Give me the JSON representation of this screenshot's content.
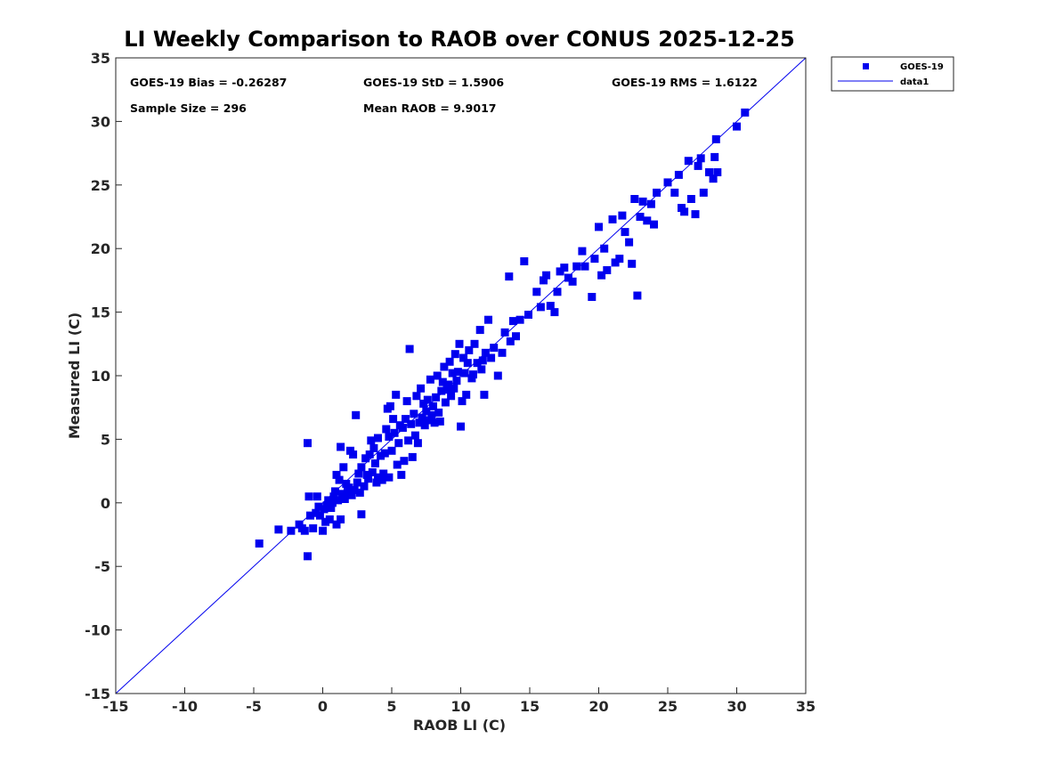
{
  "chart_data": {
    "type": "scatter",
    "title": "LI Weekly Comparison to RAOB over CONUS 2025-12-25",
    "xlabel": "RAOB LI (C)",
    "ylabel": "Measured LI (C)",
    "xlim": [
      -15,
      35
    ],
    "ylim": [
      -15,
      35
    ],
    "xticks": [
      "-15",
      "-10",
      "-5",
      "0",
      "5",
      "10",
      "15",
      "20",
      "25",
      "30",
      "35"
    ],
    "yticks": [
      "-15",
      "-10",
      "-5",
      "0",
      "5",
      "10",
      "15",
      "20",
      "25",
      "30",
      "35"
    ],
    "grid": false,
    "legend_position": "outside top-right",
    "colors": {
      "points": "#0000ee",
      "line": "#0000ee"
    },
    "stats": {
      "bias": "GOES-19 Bias = -0.26287",
      "std": "GOES-19 StD = 1.5906",
      "rms": "GOES-19 RMS = 1.6122",
      "sample": "Sample Size = 296",
      "mean": "Mean RAOB = 9.9017"
    },
    "series": [
      {
        "name": "GOES-19",
        "kind": "scatter",
        "points": [
          [
            -4.6,
            -3.2
          ],
          [
            -3.2,
            -2.1
          ],
          [
            -2.3,
            -2.2
          ],
          [
            -1.7,
            -1.7
          ],
          [
            -1.5,
            -2.0
          ],
          [
            -1.3,
            -2.2
          ],
          [
            -1.1,
            -4.2
          ],
          [
            -1.1,
            4.7
          ],
          [
            -1.0,
            0.5
          ],
          [
            -0.9,
            -1.0
          ],
          [
            -0.7,
            -2.0
          ],
          [
            -0.5,
            -0.8
          ],
          [
            -0.4,
            0.5
          ],
          [
            -0.3,
            -0.3
          ],
          [
            -0.2,
            -1.0
          ],
          [
            0.0,
            -2.2
          ],
          [
            0.1,
            -0.5
          ],
          [
            0.2,
            -1.5
          ],
          [
            0.3,
            -0.2
          ],
          [
            0.4,
            0.2
          ],
          [
            0.5,
            -1.3
          ],
          [
            0.6,
            -0.4
          ],
          [
            0.7,
            0.0
          ],
          [
            0.8,
            0.5
          ],
          [
            0.9,
            0.9
          ],
          [
            1.0,
            -1.7
          ],
          [
            1.0,
            2.2
          ],
          [
            1.1,
            0.2
          ],
          [
            1.2,
            1.8
          ],
          [
            1.3,
            -1.3
          ],
          [
            1.3,
            4.4
          ],
          [
            1.4,
            0.7
          ],
          [
            1.5,
            2.8
          ],
          [
            1.6,
            0.3
          ],
          [
            1.7,
            1.5
          ],
          [
            1.8,
            0.9
          ],
          [
            1.9,
            1.2
          ],
          [
            2.0,
            4.1
          ],
          [
            2.1,
            0.6
          ],
          [
            2.2,
            3.8
          ],
          [
            2.3,
            1.0
          ],
          [
            2.4,
            6.9
          ],
          [
            2.5,
            1.6
          ],
          [
            2.6,
            2.3
          ],
          [
            2.7,
            0.8
          ],
          [
            2.8,
            -0.9
          ],
          [
            2.8,
            2.8
          ],
          [
            3.0,
            1.3
          ],
          [
            3.1,
            3.5
          ],
          [
            3.2,
            2.2
          ],
          [
            3.3,
            1.9
          ],
          [
            3.4,
            3.8
          ],
          [
            3.5,
            4.9
          ],
          [
            3.6,
            2.4
          ],
          [
            3.7,
            4.3
          ],
          [
            3.8,
            3.1
          ],
          [
            3.9,
            1.6
          ],
          [
            4.0,
            2.0
          ],
          [
            4.0,
            5.1
          ],
          [
            4.2,
            3.7
          ],
          [
            4.3,
            1.8
          ],
          [
            4.4,
            2.3
          ],
          [
            4.5,
            3.9
          ],
          [
            4.6,
            5.8
          ],
          [
            4.7,
            7.4
          ],
          [
            4.8,
            5.2
          ],
          [
            4.8,
            2.0
          ],
          [
            4.9,
            7.6
          ],
          [
            5.0,
            4.1
          ],
          [
            5.1,
            6.6
          ],
          [
            5.2,
            5.5
          ],
          [
            5.3,
            8.5
          ],
          [
            5.4,
            3.0
          ],
          [
            5.5,
            4.7
          ],
          [
            5.6,
            6.1
          ],
          [
            5.7,
            2.2
          ],
          [
            5.8,
            5.9
          ],
          [
            5.9,
            3.3
          ],
          [
            6.0,
            6.6
          ],
          [
            6.1,
            8.0
          ],
          [
            6.2,
            4.9
          ],
          [
            6.3,
            12.1
          ],
          [
            6.4,
            6.2
          ],
          [
            6.5,
            3.6
          ],
          [
            6.6,
            7.0
          ],
          [
            6.7,
            5.3
          ],
          [
            6.8,
            8.4
          ],
          [
            6.9,
            4.7
          ],
          [
            7.0,
            6.3
          ],
          [
            7.1,
            9.0
          ],
          [
            7.2,
            6.7
          ],
          [
            7.3,
            7.8
          ],
          [
            7.4,
            6.1
          ],
          [
            7.5,
            7.2
          ],
          [
            7.6,
            8.1
          ],
          [
            7.7,
            6.5
          ],
          [
            7.8,
            9.7
          ],
          [
            7.9,
            6.9
          ],
          [
            8.0,
            7.6
          ],
          [
            8.1,
            6.3
          ],
          [
            8.2,
            8.3
          ],
          [
            8.3,
            10.0
          ],
          [
            8.4,
            7.1
          ],
          [
            8.5,
            6.4
          ],
          [
            8.6,
            8.8
          ],
          [
            8.7,
            9.5
          ],
          [
            8.8,
            10.7
          ],
          [
            8.9,
            7.9
          ],
          [
            9.0,
            8.9
          ],
          [
            9.1,
            9.3
          ],
          [
            9.2,
            11.1
          ],
          [
            9.3,
            8.4
          ],
          [
            9.4,
            10.2
          ],
          [
            9.5,
            9.0
          ],
          [
            9.6,
            11.7
          ],
          [
            9.7,
            9.6
          ],
          [
            9.8,
            10.3
          ],
          [
            9.9,
            12.5
          ],
          [
            10.0,
            6.0
          ],
          [
            10.1,
            8.0
          ],
          [
            10.2,
            11.4
          ],
          [
            10.3,
            10.2
          ],
          [
            10.4,
            8.5
          ],
          [
            10.5,
            11.0
          ],
          [
            10.6,
            12.0
          ],
          [
            10.8,
            9.8
          ],
          [
            10.9,
            10.1
          ],
          [
            11.0,
            12.5
          ],
          [
            11.2,
            11.0
          ],
          [
            11.4,
            13.6
          ],
          [
            11.5,
            10.5
          ],
          [
            11.6,
            11.2
          ],
          [
            11.7,
            8.5
          ],
          [
            11.8,
            11.8
          ],
          [
            12.0,
            14.4
          ],
          [
            12.2,
            11.4
          ],
          [
            12.4,
            12.2
          ],
          [
            12.7,
            10.0
          ],
          [
            13.0,
            11.8
          ],
          [
            13.2,
            13.4
          ],
          [
            13.5,
            17.8
          ],
          [
            13.6,
            12.7
          ],
          [
            13.8,
            14.3
          ],
          [
            14.0,
            13.1
          ],
          [
            14.3,
            14.4
          ],
          [
            14.6,
            19.0
          ],
          [
            14.9,
            14.8
          ],
          [
            15.5,
            16.6
          ],
          [
            15.8,
            15.4
          ],
          [
            16.0,
            17.5
          ],
          [
            16.2,
            17.9
          ],
          [
            16.5,
            15.5
          ],
          [
            16.8,
            15.0
          ],
          [
            17.0,
            16.6
          ],
          [
            17.2,
            18.2
          ],
          [
            17.5,
            18.5
          ],
          [
            17.8,
            17.7
          ],
          [
            18.1,
            17.4
          ],
          [
            18.4,
            18.6
          ],
          [
            18.8,
            19.8
          ],
          [
            19.0,
            18.6
          ],
          [
            19.5,
            16.2
          ],
          [
            19.7,
            19.2
          ],
          [
            20.0,
            21.7
          ],
          [
            20.2,
            17.9
          ],
          [
            20.4,
            20.0
          ],
          [
            20.6,
            18.3
          ],
          [
            21.0,
            22.3
          ],
          [
            21.2,
            18.9
          ],
          [
            21.5,
            19.2
          ],
          [
            21.7,
            22.6
          ],
          [
            21.9,
            21.3
          ],
          [
            22.2,
            20.5
          ],
          [
            22.4,
            18.8
          ],
          [
            22.6,
            23.9
          ],
          [
            22.8,
            16.3
          ],
          [
            23.0,
            22.5
          ],
          [
            23.2,
            23.7
          ],
          [
            23.5,
            22.2
          ],
          [
            23.8,
            23.5
          ],
          [
            24.0,
            21.9
          ],
          [
            24.2,
            24.4
          ],
          [
            25.0,
            25.2
          ],
          [
            25.5,
            24.4
          ],
          [
            25.8,
            25.8
          ],
          [
            26.0,
            23.2
          ],
          [
            26.2,
            22.9
          ],
          [
            26.5,
            26.9
          ],
          [
            26.7,
            23.9
          ],
          [
            27.0,
            22.7
          ],
          [
            27.2,
            26.5
          ],
          [
            27.4,
            27.1
          ],
          [
            27.6,
            24.4
          ],
          [
            28.0,
            26.0
          ],
          [
            28.3,
            25.5
          ],
          [
            28.5,
            28.6
          ],
          [
            28.6,
            26.0
          ],
          [
            30.0,
            29.6
          ],
          [
            30.6,
            30.7
          ],
          [
            28.4,
            27.2
          ]
        ]
      },
      {
        "name": "data1",
        "kind": "line",
        "points": [
          [
            -15,
            -15
          ],
          [
            35,
            35
          ]
        ]
      }
    ]
  }
}
